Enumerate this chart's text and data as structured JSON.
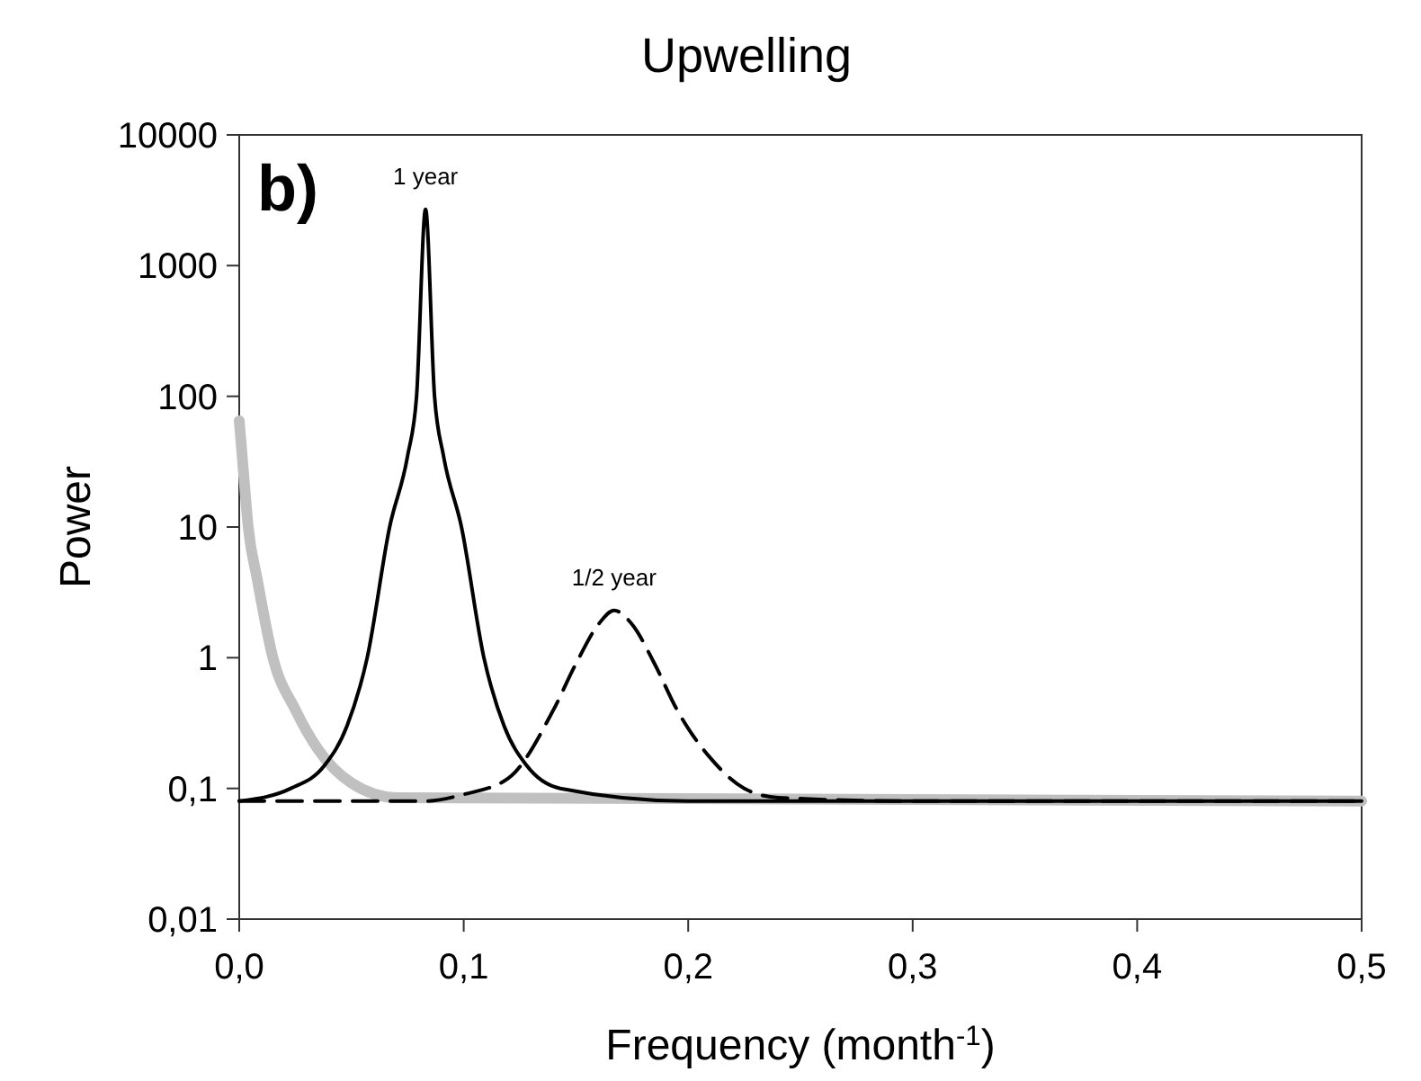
{
  "chart_data": {
    "type": "line",
    "title": "Upwelling",
    "xlabel": "Frequency (month$^{-1}$)",
    "ylabel": "Power",
    "log": "y",
    "grid": false,
    "marker": "none",
    "xlim": [
      0,
      0.5
    ],
    "ylim": [
      0.01,
      10000
    ],
    "xticks": [
      {
        "value": 0,
        "label": "0,0"
      },
      {
        "value": 0.1,
        "label": "0,1"
      },
      {
        "value": 0.2,
        "label": "0,2"
      },
      {
        "value": 0.3,
        "label": "0,3"
      },
      {
        "value": 0.4,
        "label": "0,4"
      },
      {
        "value": 0.5,
        "label": "0,5"
      }
    ],
    "yticks": [
      {
        "value": 0.01,
        "label": "0,01"
      },
      {
        "value": 0.1,
        "label": "0,1"
      },
      1,
      10,
      100,
      1000,
      10000
    ],
    "series": [
      {
        "color": "#c0c0c0",
        "line_style": "solid",
        "x": [
          0,
          0.002,
          0.004,
          0.008,
          0.015,
          0.025,
          0.035,
          0.05,
          0.07,
          0.5
        ],
        "values": [
          65,
          25,
          10,
          4,
          1,
          0.4,
          0.2,
          0.11,
          0.085,
          0.08
        ]
      },
      {
        "color": "#000000",
        "line_style": "solid",
        "x": [
          0,
          0.023,
          0.038,
          0.048,
          0.057,
          0.067,
          0.075,
          0.079,
          0.083,
          0.087,
          0.091,
          0.099,
          0.109,
          0.118,
          0.128,
          0.143,
          0.2,
          0.5
        ],
        "values": [
          0.08,
          0.1,
          0.15,
          0.3,
          1,
          10,
          35,
          100,
          2700,
          100,
          35,
          10,
          1,
          0.3,
          0.15,
          0.1,
          0.08,
          0.08
        ]
      },
      {
        "color": "#000000",
        "line_style": "dashed",
        "x": [
          0,
          0.05,
          0.083,
          0.1,
          0.12,
          0.14,
          0.15,
          0.16,
          0.167,
          0.175,
          0.185,
          0.195,
          0.21,
          0.225,
          0.24,
          0.3,
          0.5
        ],
        "values": [
          0.08,
          0.08,
          0.08,
          0.09,
          0.12,
          0.4,
          0.9,
          1.8,
          2.3,
          1.8,
          0.9,
          0.4,
          0.17,
          0.1,
          0.085,
          0.08,
          0.08
        ]
      }
    ],
    "annotations": [
      "b)",
      {
        "text": "1 year",
        "x": 0.083,
        "y": 2700
      },
      {
        "text": "1/2 year",
        "x": 0.167,
        "y": 2.3
      }
    ]
  }
}
